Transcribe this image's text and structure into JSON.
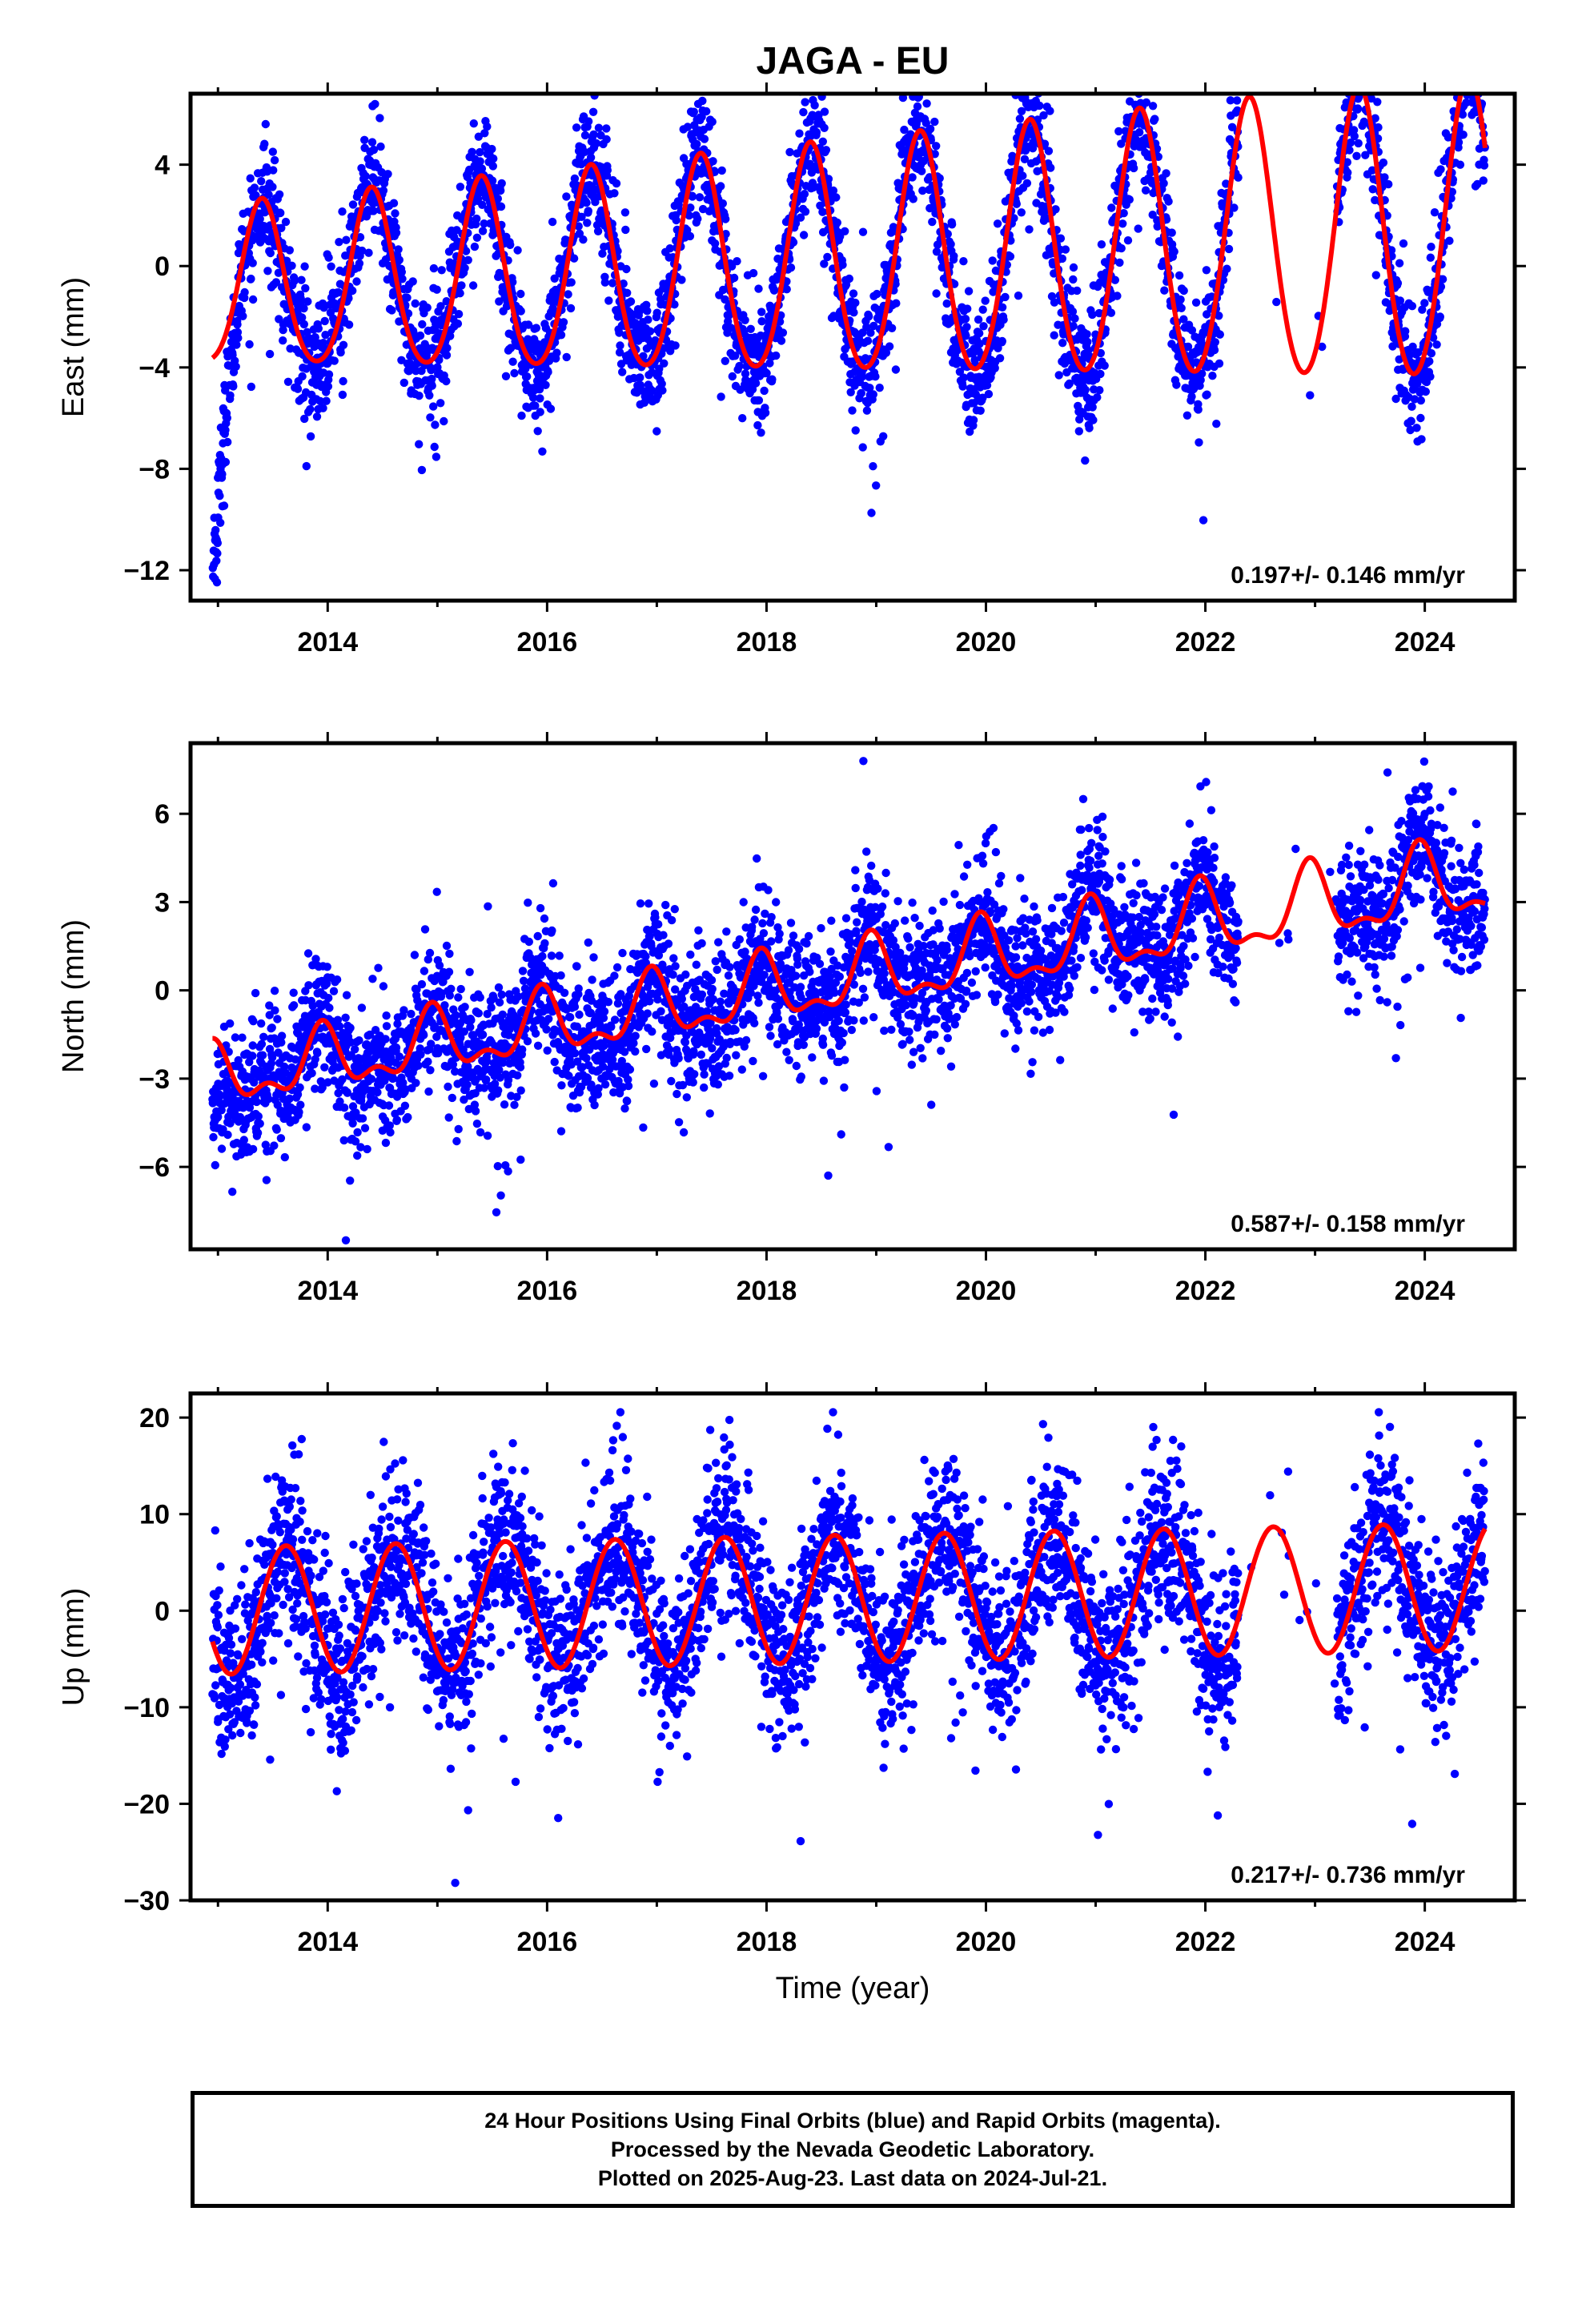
{
  "title": "JAGA - EU",
  "colors": {
    "observations": "#0000ff",
    "model": "#ff0000",
    "frame": "#000000"
  },
  "chart_data": [
    {
      "type": "scatter",
      "ylabel": "East (mm)",
      "xlim": [
        2012.75,
        2024.82
      ],
      "ylim": [
        -13.2,
        6.8
      ],
      "xticks": [
        "2014",
        "2016",
        "2018",
        "2020",
        "2022",
        "2024"
      ],
      "yticks": [
        "4",
        "0",
        "−4",
        "−8",
        "−12"
      ],
      "annotation": "0.197+/- 0.146 mm/yr",
      "grid": false,
      "series": [
        {
          "kind": "points",
          "model": {
            "t0": 2013.0,
            "offset": -1.0,
            "rate": 0.197,
            "amplitude": 3.1,
            "amp_growth": 0.08,
            "peak": 0.4,
            "semi_amp": 0.4,
            "start_transient": -9.0,
            "transient_decay": 0.12,
            "scatter": 1.2
          }
        },
        {
          "kind": "line",
          "model": {
            "t0": 2013.0,
            "offset": -1.0,
            "rate": 0.197,
            "amplitude": 3.1,
            "amp_growth": 0.08,
            "peak": 0.4,
            "semi_amp": 0.4
          }
        }
      ]
    },
    {
      "type": "scatter",
      "ylabel": "North (mm)",
      "xlim": [
        2012.75,
        2024.82
      ],
      "ylim": [
        -8.8,
        8.4
      ],
      "xticks": [
        "2014",
        "2016",
        "2018",
        "2020",
        "2022",
        "2024"
      ],
      "yticks": [
        "6",
        "3",
        "0",
        "−3",
        "−6"
      ],
      "annotation": "0.587+/- 0.158 mm/yr",
      "grid": false,
      "series": [
        {
          "kind": "points",
          "model": {
            "t0": 2013.0,
            "offset": -3.0,
            "rate": 0.587,
            "amplitude": 0.9,
            "amp_growth": 0.03,
            "peak": 0.95,
            "semi_amp": 0.5,
            "start_transient": -2.5,
            "transient_decay": 0.15,
            "scatter": 1.1
          }
        },
        {
          "kind": "line",
          "model": {
            "t0": 2013.0,
            "offset": -3.0,
            "rate": 0.587,
            "amplitude": 0.9,
            "amp_growth": 0.03,
            "peak": 0.95,
            "semi_amp": 0.5
          }
        }
      ]
    },
    {
      "type": "scatter",
      "ylabel": "Up (mm)",
      "xlabel": "Time (year)",
      "xlim": [
        2012.75,
        2024.82
      ],
      "ylim": [
        -30,
        22.5
      ],
      "xticks": [
        "2014",
        "2016",
        "2018",
        "2020",
        "2022",
        "2024"
      ],
      "yticks": [
        "20",
        "10",
        "0",
        "−10",
        "−20",
        "−30"
      ],
      "annotation": "0.217+/- 0.736 mm/yr",
      "grid": false,
      "series": [
        {
          "kind": "points",
          "model": {
            "t0": 2013.0,
            "offset": 0.0,
            "rate": 0.217,
            "amplitude": 6.6,
            "amp_growth": 0.0,
            "peak": 0.62,
            "semi_amp": 0.0,
            "start_transient": 0.0,
            "transient_decay": 0.2,
            "scatter": 4.2
          }
        },
        {
          "kind": "line",
          "model": {
            "t0": 2013.0,
            "offset": 0.0,
            "rate": 0.217,
            "amplitude": 6.6,
            "amp_growth": 0.0,
            "peak": 0.62,
            "semi_amp": 0.0
          }
        }
      ]
    }
  ],
  "data_span": {
    "start": 2012.95,
    "end": 2024.55,
    "gaps": [
      [
        2022.3,
        2023.2
      ]
    ]
  },
  "footer": {
    "line1": "24 Hour Positions Using Final Orbits (blue) and Rapid Orbits (magenta).",
    "line2": "Processed by the Nevada Geodetic Laboratory.",
    "line3": "Plotted on 2025-Aug-23. Last data on 2024-Jul-21."
  }
}
